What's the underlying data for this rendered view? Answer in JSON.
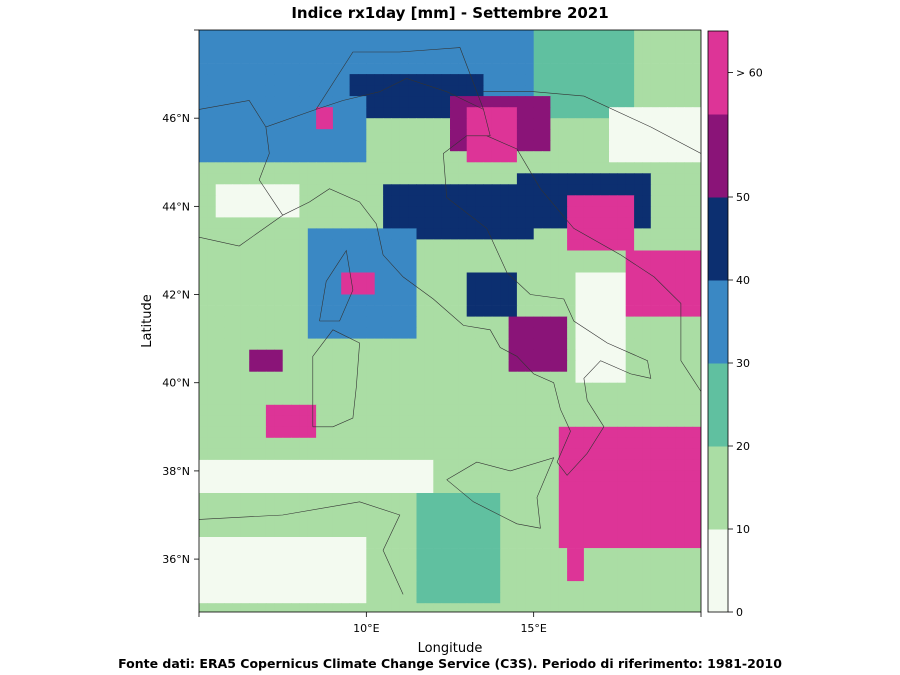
{
  "title": "Indice rx1day [mm] - Settembre 2021",
  "source_note": "Fonte dati: ERA5 Copernicus Climate Change Service (C3S). Periodo di riferimento: 1981-2010",
  "map": {
    "xlabel": "Longitude",
    "ylabel": "Latitude",
    "lon_range": [
      5,
      20
    ],
    "lat_range": [
      34.8,
      48
    ],
    "x_ticks": [
      {
        "value": 5,
        "label": ""
      },
      {
        "value": 10,
        "label": "10°E"
      },
      {
        "value": 15,
        "label": "15°E"
      },
      {
        "value": 20,
        "label": ""
      }
    ],
    "y_ticks": [
      {
        "value": 36,
        "label": "36°N"
      },
      {
        "value": 38,
        "label": "38°N"
      },
      {
        "value": 40,
        "label": "40°N"
      },
      {
        "value": 42,
        "label": "42°N"
      },
      {
        "value": 44,
        "label": "44°N"
      },
      {
        "value": 46,
        "label": "46°N"
      },
      {
        "value": 48,
        "label": ""
      }
    ],
    "grid": false
  },
  "colorbar": {
    "levels": [
      {
        "from": 0,
        "to": 10,
        "color": "#f3faf0"
      },
      {
        "from": 10,
        "to": 20,
        "color": "#aadda4"
      },
      {
        "from": 20,
        "to": 30,
        "color": "#60c0a0"
      },
      {
        "from": 30,
        "to": 40,
        "color": "#3a88c4"
      },
      {
        "from": 40,
        "to": 50,
        "color": "#0c2f70"
      },
      {
        "from": 50,
        "to": 60,
        "color": "#8a1478"
      },
      {
        "from": 60,
        "to": null,
        "color": "#dd3497"
      }
    ],
    "tick_labels": [
      {
        "value": 0,
        "label": "0"
      },
      {
        "value": 10,
        "label": "10"
      },
      {
        "value": 20,
        "label": "20"
      },
      {
        "value": 30,
        "label": "30"
      },
      {
        "value": 40,
        "label": "40"
      },
      {
        "value": 50,
        "label": "50"
      },
      {
        "value": 65,
        "label": "> 60"
      }
    ]
  },
  "chart_data": {
    "type": "heatmap",
    "title": "Indice rx1day [mm] - Settembre 2021",
    "xlabel": "Longitude",
    "ylabel": "Latitude",
    "xlim": [
      5,
      20
    ],
    "ylim": [
      34.8,
      48
    ],
    "value_units": "mm",
    "class_bins": [
      0,
      10,
      20,
      30,
      40,
      50,
      60
    ],
    "regions": [
      {
        "lon": [
          5,
          20
        ],
        "lat": [
          34.8,
          48
        ],
        "class": 1
      },
      {
        "lon": [
          5,
          8
        ],
        "lat": [
          45,
          48
        ],
        "class": 3
      },
      {
        "lon": [
          8,
          15
        ],
        "lat": [
          46,
          48
        ],
        "class": 3
      },
      {
        "lon": [
          15,
          18
        ],
        "lat": [
          46,
          48
        ],
        "class": 2
      },
      {
        "lon": [
          9.5,
          13.5
        ],
        "lat": [
          46,
          47
        ],
        "class": 4
      },
      {
        "lon": [
          12.5,
          15.5
        ],
        "lat": [
          45.2,
          46.5
        ],
        "class": 5
      },
      {
        "lon": [
          13,
          14.5
        ],
        "lat": [
          44.9,
          46.2
        ],
        "class": 6
      },
      {
        "lon": [
          8,
          10
        ],
        "lat": [
          45,
          46.5
        ],
        "class": 3
      },
      {
        "lon": [
          8.5,
          9
        ],
        "lat": [
          45.8,
          46.2
        ],
        "class": 6
      },
      {
        "lon": [
          14.5,
          18.5
        ],
        "lat": [
          43.5,
          44.8
        ],
        "class": 4
      },
      {
        "lon": [
          16,
          18
        ],
        "lat": [
          43,
          44.2
        ],
        "class": 6
      },
      {
        "lon": [
          17.8,
          20
        ],
        "lat": [
          41.5,
          43
        ],
        "class": 6
      },
      {
        "lon": [
          10.5,
          15
        ],
        "lat": [
          43.2,
          44.5
        ],
        "class": 4
      },
      {
        "lon": [
          8.2,
          11.5
        ],
        "lat": [
          41,
          43.5
        ],
        "class": 3
      },
      {
        "lon": [
          9.2,
          10.2
        ],
        "lat": [
          42.0,
          42.6
        ],
        "class": 6
      },
      {
        "lon": [
          13,
          14.5
        ],
        "lat": [
          41.5,
          42.5
        ],
        "class": 4
      },
      {
        "lon": [
          14.2,
          16
        ],
        "lat": [
          40.2,
          41.5
        ],
        "class": 5
      },
      {
        "lon": [
          6.4,
          7.6
        ],
        "lat": [
          40.2,
          40.8
        ],
        "class": 5
      },
      {
        "lon": [
          7,
          8.6
        ],
        "lat": [
          38.7,
          39.6
        ],
        "class": 6
      },
      {
        "lon": [
          15.8,
          20
        ],
        "lat": [
          36.2,
          39.1
        ],
        "class": 6
      },
      {
        "lon": [
          16,
          16.5
        ],
        "lat": [
          35.5,
          37
        ],
        "class": 6
      },
      {
        "lon": [
          16.3,
          17.8
        ],
        "lat": [
          40,
          42.5
        ],
        "class": 0
      },
      {
        "lon": [
          17.2,
          20
        ],
        "lat": [
          45,
          46.2
        ],
        "class": 0
      },
      {
        "lon": [
          5,
          10
        ],
        "lat": [
          35,
          36.5
        ],
        "class": 0
      },
      {
        "lon": [
          5,
          12
        ],
        "lat": [
          37.5,
          38.3
        ],
        "class": 0
      },
      {
        "lon": [
          11.5,
          14
        ],
        "lat": [
          35,
          37.5
        ],
        "class": 2
      },
      {
        "lon": [
          5.5,
          8
        ],
        "lat": [
          43.8,
          44.5
        ],
        "class": 0
      }
    ]
  }
}
